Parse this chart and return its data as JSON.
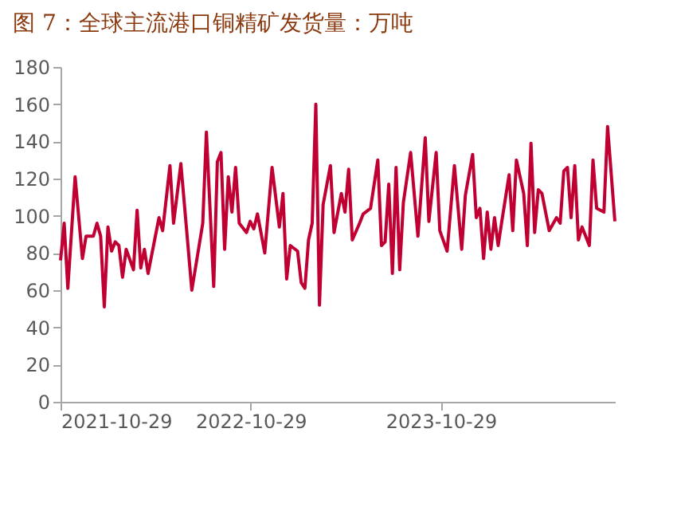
{
  "chart_data": {
    "type": "line",
    "title": "图 7：全球主流港口铜精矿发货量：万吨",
    "x": [
      "2021-10-29",
      "2021-11-05",
      "2021-11-12",
      "2021-11-26",
      "2021-12-10",
      "2021-12-17",
      "2021-12-31",
      "2022-01-07",
      "2022-01-14",
      "2022-01-21",
      "2022-01-28",
      "2022-02-04",
      "2022-02-11",
      "2022-02-18",
      "2022-02-25",
      "2022-03-04",
      "2022-03-18",
      "2022-03-25",
      "2022-04-01",
      "2022-04-08",
      "2022-04-15",
      "2022-05-06",
      "2022-05-13",
      "2022-05-27",
      "2022-06-03",
      "2022-06-17",
      "2022-07-08",
      "2022-07-29",
      "2022-08-05",
      "2022-08-19",
      "2022-08-26",
      "2022-09-02",
      "2022-09-09",
      "2022-09-16",
      "2022-09-23",
      "2022-09-30",
      "2022-10-07",
      "2022-10-21",
      "2022-10-28",
      "2022-11-04",
      "2022-11-11",
      "2022-11-25",
      "2022-12-09",
      "2022-12-23",
      "2022-12-30",
      "2023-01-06",
      "2023-01-13",
      "2023-01-27",
      "2023-02-03",
      "2023-02-10",
      "2023-02-17",
      "2023-02-24",
      "2023-03-03",
      "2023-03-10",
      "2023-03-17",
      "2023-03-31",
      "2023-04-07",
      "2023-04-21",
      "2023-04-28",
      "2023-05-05",
      "2023-05-12",
      "2023-05-26",
      "2023-06-02",
      "2023-06-16",
      "2023-06-30",
      "2023-07-07",
      "2023-07-14",
      "2023-07-21",
      "2023-07-28",
      "2023-08-04",
      "2023-08-11",
      "2023-08-18",
      "2023-09-01",
      "2023-09-15",
      "2023-09-29",
      "2023-10-06",
      "2023-10-20",
      "2023-10-27",
      "2023-11-10",
      "2023-11-24",
      "2023-12-08",
      "2023-12-15",
      "2023-12-29",
      "2024-01-05",
      "2024-01-12",
      "2024-01-19",
      "2024-01-26",
      "2024-02-02",
      "2024-02-09",
      "2024-02-16",
      "2024-02-23",
      "2024-03-08",
      "2024-03-15",
      "2024-03-22",
      "2024-04-05",
      "2024-04-12",
      "2024-04-19",
      "2024-04-26",
      "2024-05-03",
      "2024-05-10",
      "2024-05-24",
      "2024-06-07",
      "2024-06-14",
      "2024-06-21",
      "2024-06-28",
      "2024-07-05",
      "2024-07-12",
      "2024-07-19",
      "2024-07-26",
      "2024-08-09",
      "2024-08-16",
      "2024-08-23",
      "2024-09-06",
      "2024-09-13",
      "2024-09-27"
    ],
    "series": [
      {
        "color": "#c00033",
        "values": [
          76,
          96,
          61,
          121,
          77,
          89,
          89,
          96,
          89,
          51,
          94,
          81,
          86,
          84,
          67,
          82,
          71,
          103,
          72,
          82,
          69,
          99,
          92,
          127,
          96,
          128,
          60,
          96,
          145,
          62,
          129,
          134,
          82,
          121,
          102,
          126,
          96,
          91,
          97,
          93,
          101,
          80,
          126,
          94,
          112,
          66,
          84,
          81,
          64,
          61,
          87,
          96,
          160,
          52,
          106,
          127,
          91,
          112,
          102,
          125,
          87,
          96,
          101,
          104,
          130,
          84,
          86,
          117,
          69,
          126,
          71,
          107,
          134,
          89,
          142,
          97,
          134,
          92,
          81,
          127,
          82,
          111,
          133,
          99,
          104,
          77,
          102,
          82,
          99,
          84,
          97,
          122,
          92,
          130,
          112,
          84,
          139,
          91,
          114,
          112,
          92,
          99,
          96,
          124,
          126,
          99,
          127,
          87,
          94,
          84,
          130,
          104,
          102,
          148,
          97
        ]
      }
    ],
    "xlim": [
      "2021-10-29",
      "2024-09-27"
    ],
    "xticks": [
      {
        "value": "2021-10-29",
        "label": "2021-10-29"
      },
      {
        "value": "2022-10-29",
        "label": "2022-10-29"
      },
      {
        "value": "2023-10-29",
        "label": "2023-10-29"
      }
    ],
    "ylim": [
      0,
      180
    ],
    "yticks": [
      0,
      20,
      40,
      60,
      80,
      100,
      120,
      140,
      160,
      180
    ],
    "grid": false,
    "marker": "none",
    "line_style": "solid"
  }
}
